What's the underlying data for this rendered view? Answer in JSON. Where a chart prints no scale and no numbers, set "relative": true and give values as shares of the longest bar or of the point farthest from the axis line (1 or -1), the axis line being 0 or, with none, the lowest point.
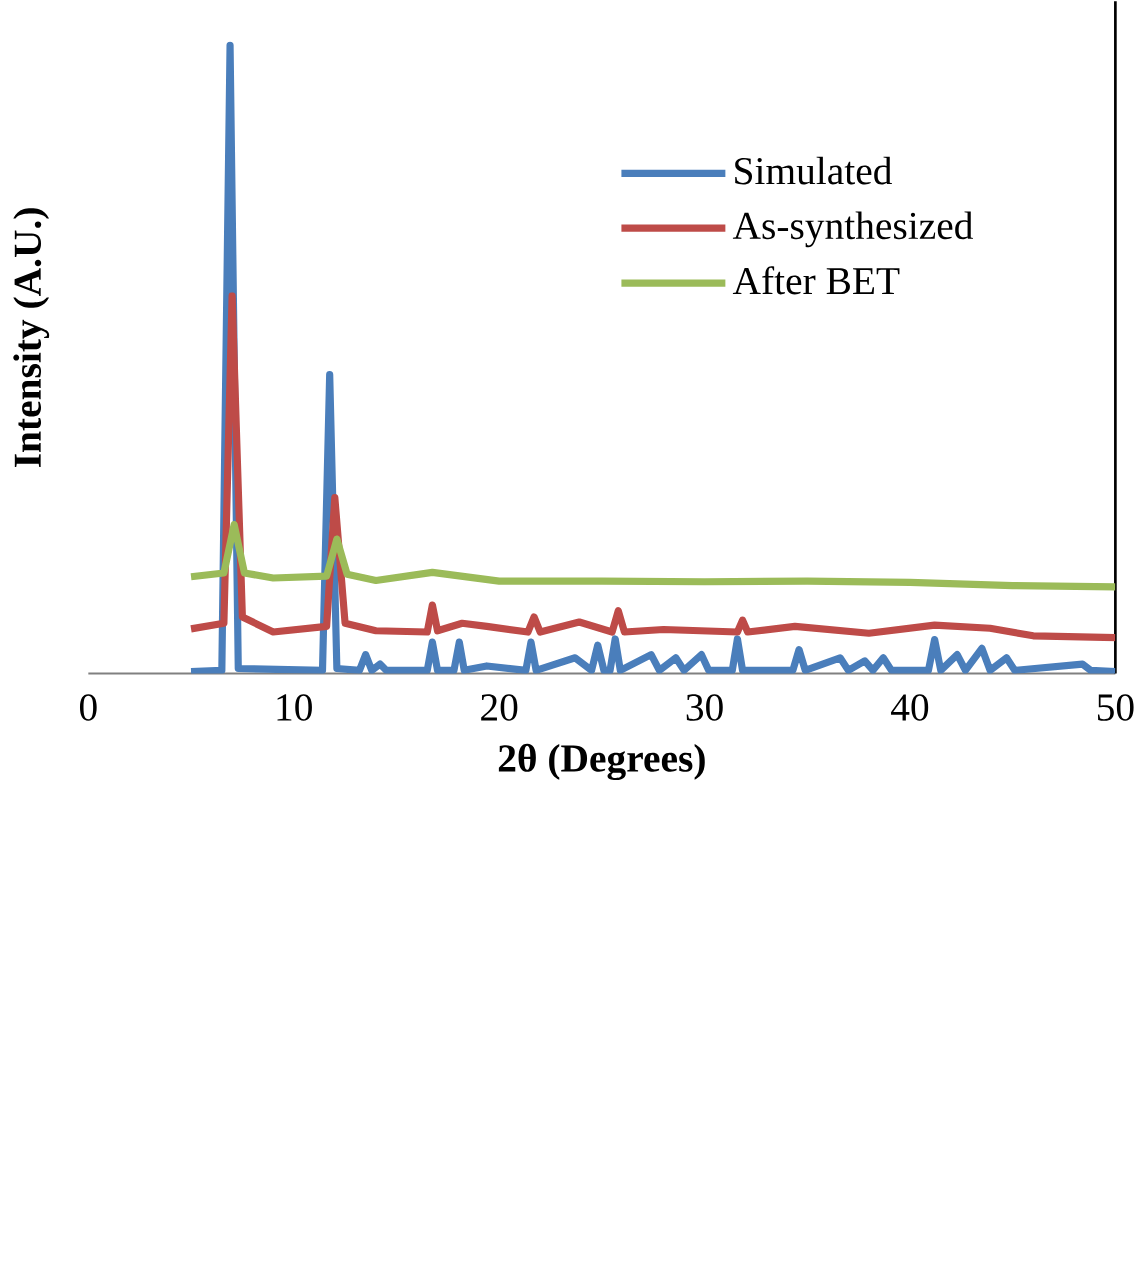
{
  "chart_data": {
    "type": "line",
    "relative": true,
    "xlabel": "2θ (Degrees)",
    "ylabel": "Intensity (A.U.)",
    "xlim": [
      0,
      50
    ],
    "xticks": [
      0,
      10,
      20,
      30,
      40,
      50
    ],
    "legend": "top right",
    "grid": false,
    "marker": "none",
    "line_style": "solid",
    "series": [
      {
        "name": "Simulated",
        "color": "#4a7ebb",
        "x": [
          5.0,
          6.5,
          6.9,
          7.3,
          11.4,
          11.75,
          12.1,
          13.2,
          13.5,
          13.8,
          14.2,
          14.5,
          16.5,
          16.75,
          17.0,
          17.8,
          18.06,
          18.3,
          19.4,
          21.3,
          21.55,
          21.8,
          23.7,
          24.5,
          24.8,
          25.1,
          25.4,
          25.65,
          25.9,
          27.4,
          27.8,
          28.6,
          29.0,
          29.85,
          30.2,
          31.35,
          31.6,
          31.85,
          34.3,
          34.6,
          34.9,
          36.6,
          37.0,
          37.8,
          38.2,
          38.7,
          39.1,
          40.9,
          41.2,
          41.5,
          42.3,
          42.7,
          43.5,
          43.9,
          44.7,
          45.1,
          48.4,
          48.8,
          50.0
        ],
        "values": [
          0.003,
          0.005,
          1.0,
          0.008,
          0.005,
          0.476,
          0.008,
          0.005,
          0.03,
          0.005,
          0.015,
          0.005,
          0.005,
          0.05,
          0.005,
          0.005,
          0.05,
          0.005,
          0.012,
          0.005,
          0.05,
          0.005,
          0.025,
          0.005,
          0.045,
          0.005,
          0.005,
          0.055,
          0.005,
          0.03,
          0.005,
          0.025,
          0.005,
          0.03,
          0.005,
          0.005,
          0.055,
          0.005,
          0.005,
          0.038,
          0.005,
          0.025,
          0.005,
          0.02,
          0.005,
          0.025,
          0.005,
          0.005,
          0.054,
          0.005,
          0.03,
          0.005,
          0.04,
          0.005,
          0.025,
          0.005,
          0.015,
          0.005,
          0.003
        ]
      },
      {
        "name": "As-synthesized",
        "color": "#be4b48",
        "x": [
          5.0,
          6.6,
          7.0,
          7.5,
          9.0,
          11.6,
          12.0,
          12.5,
          14.0,
          16.5,
          16.75,
          17.0,
          18.2,
          19.4,
          21.4,
          21.7,
          22.0,
          23.9,
          25.5,
          25.8,
          26.1,
          28.0,
          31.6,
          31.85,
          32.1,
          34.4,
          38.0,
          41.2,
          43.9,
          46.0,
          50.0
        ],
        "values": [
          0.071,
          0.08,
          0.601,
          0.09,
          0.066,
          0.075,
          0.28,
          0.08,
          0.068,
          0.066,
          0.109,
          0.068,
          0.08,
          0.075,
          0.066,
          0.09,
          0.066,
          0.082,
          0.066,
          0.1,
          0.066,
          0.07,
          0.066,
          0.085,
          0.066,
          0.075,
          0.064,
          0.077,
          0.072,
          0.06,
          0.057
        ]
      },
      {
        "name": "After BET",
        "color": "#9bbb59",
        "x": [
          5.0,
          6.6,
          7.1,
          7.6,
          9.0,
          11.6,
          12.1,
          12.6,
          14.0,
          16.75,
          20.0,
          25.0,
          30.0,
          35.0,
          40.0,
          45.0,
          50.0
        ],
        "values": [
          0.154,
          0.16,
          0.237,
          0.16,
          0.152,
          0.155,
          0.214,
          0.158,
          0.148,
          0.161,
          0.147,
          0.147,
          0.146,
          0.147,
          0.145,
          0.14,
          0.138
        ]
      }
    ]
  }
}
